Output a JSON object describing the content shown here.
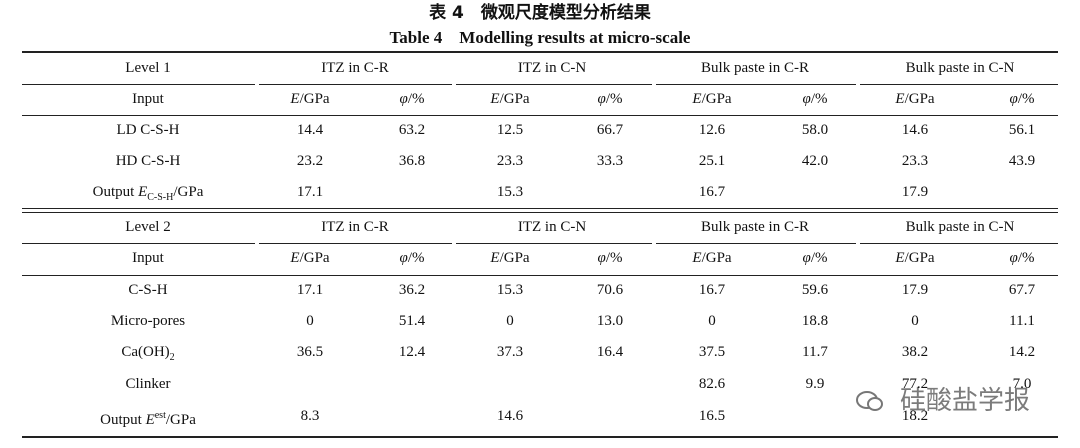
{
  "title": {
    "zh": "表 4　微观尺度模型分析结果",
    "en": "Table 4　Modelling results at micro-scale"
  },
  "sections": [
    {
      "level": "Level 1",
      "groups": [
        "ITZ in C-R",
        "ITZ in C-N",
        "Bulk paste in C-R",
        "Bulk paste in C-N"
      ],
      "input": "Input",
      "subheaders": [
        [
          {
            "text": "E",
            "italic": true
          },
          {
            "text": "/GPa"
          }
        ],
        [
          {
            "text": "φ",
            "italic": true
          },
          {
            "text": "/%"
          }
        ],
        [
          {
            "text": "E",
            "italic": true
          },
          {
            "text": "/GPa"
          }
        ],
        [
          {
            "text": "φ",
            "italic": true
          },
          {
            "text": "/%"
          }
        ],
        [
          {
            "text": "E",
            "italic": true
          },
          {
            "text": "/GPa"
          }
        ],
        [
          {
            "text": "φ",
            "italic": true
          },
          {
            "text": "/%"
          }
        ],
        [
          {
            "text": "E",
            "italic": true
          },
          {
            "text": "/GPa"
          }
        ],
        [
          {
            "text": "φ",
            "italic": true
          },
          {
            "text": "/%"
          }
        ]
      ],
      "rows": [
        {
          "label": [
            {
              "text": "LD C-S-H"
            }
          ],
          "cells": [
            "14.4",
            "63.2",
            "12.5",
            "66.7",
            "12.6",
            "58.0",
            "14.6",
            "56.1"
          ]
        },
        {
          "label": [
            {
              "text": "HD C-S-H"
            }
          ],
          "cells": [
            "23.2",
            "36.8",
            "23.3",
            "33.3",
            "25.1",
            "42.0",
            "23.3",
            "43.9"
          ]
        },
        {
          "label": [
            {
              "text": "Output "
            },
            {
              "text": "E",
              "italic": true
            },
            {
              "text": "C-S-H",
              "sub": true
            },
            {
              "text": "/GPa"
            }
          ],
          "cells": [
            "17.1",
            null,
            "15.3",
            null,
            "16.7",
            null,
            "17.9",
            null
          ]
        }
      ]
    },
    {
      "level": "Level 2",
      "groups": [
        "ITZ in C-R",
        "ITZ in C-N",
        "Bulk paste in C-R",
        "Bulk paste in C-N"
      ],
      "input": "Input",
      "subheaders": [
        [
          {
            "text": "E",
            "italic": true
          },
          {
            "text": "/GPa"
          }
        ],
        [
          {
            "text": "φ",
            "italic": true
          },
          {
            "text": "/%"
          }
        ],
        [
          {
            "text": "E",
            "italic": true
          },
          {
            "text": "/GPa"
          }
        ],
        [
          {
            "text": "φ",
            "italic": true
          },
          {
            "text": "/%"
          }
        ],
        [
          {
            "text": "E",
            "italic": true
          },
          {
            "text": "/GPa"
          }
        ],
        [
          {
            "text": "φ",
            "italic": true
          },
          {
            "text": "/%"
          }
        ],
        [
          {
            "text": "E",
            "italic": true
          },
          {
            "text": "/GPa"
          }
        ],
        [
          {
            "text": "φ",
            "italic": true
          },
          {
            "text": "/%"
          }
        ]
      ],
      "rows": [
        {
          "label": [
            {
              "text": "C-S-H"
            }
          ],
          "cells": [
            "17.1",
            "36.2",
            "15.3",
            "70.6",
            "16.7",
            "59.6",
            "17.9",
            "67.7"
          ]
        },
        {
          "label": [
            {
              "text": "Micro-pores"
            }
          ],
          "cells": [
            "0",
            "51.4",
            "0",
            "13.0",
            "0",
            "18.8",
            "0",
            "11.1"
          ]
        },
        {
          "label": [
            {
              "text": "Ca(OH)"
            },
            {
              "text": "2",
              "sub": true
            }
          ],
          "cells": [
            "36.5",
            "12.4",
            "37.3",
            "16.4",
            "37.5",
            "11.7",
            "38.2",
            "14.2"
          ]
        },
        {
          "label": [
            {
              "text": "Clinker"
            }
          ],
          "cells": [
            null,
            null,
            null,
            null,
            "82.6",
            "9.9",
            "77.2",
            "7.0"
          ]
        },
        {
          "label": [
            {
              "text": "Output "
            },
            {
              "text": "E",
              "italic": true
            },
            {
              "text": "est",
              "sup": true
            },
            {
              "text": "/GPa"
            }
          ],
          "cells": [
            "8.3",
            null,
            "14.6",
            null,
            "16.5",
            null,
            "18.2",
            null
          ]
        }
      ]
    }
  ],
  "watermark": "硅酸盐学报"
}
